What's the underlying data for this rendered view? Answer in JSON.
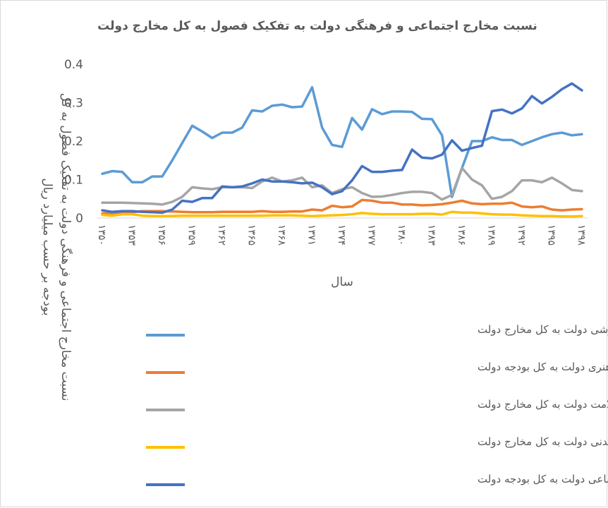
{
  "chart_data": {
    "type": "line",
    "title": "نسبت مخارج اجتماعی و فرهنگی دولت به تفکیک فصول به کل مخارج دولت",
    "x_label": "سال",
    "y_label": "نسبت مخارج اجتماعی و فرهنگی دولت به تفکیک فصول به کل بودجه بر حسب میلیارد ریال",
    "categories": [
      "۱۳۵۰",
      null,
      null,
      "۱۳۵۳",
      null,
      null,
      "۱۳۵۶",
      null,
      null,
      "۱۳۵۹",
      null,
      null,
      "۱۳۶۲",
      null,
      null,
      "۱۳۶۵",
      null,
      null,
      "۱۳۶۸",
      null,
      null,
      "۱۳۷۱",
      null,
      null,
      "۱۳۷۴",
      null,
      null,
      "۱۳۷۷",
      null,
      null,
      "۱۳۸۰",
      null,
      null,
      "۱۳۸۳",
      null,
      null,
      "۱۳۸۶",
      null,
      null,
      "۱۳۸۹",
      null,
      null,
      "۱۳۹۲",
      null,
      null,
      "۱۳۹۵",
      null,
      null,
      "۱۳۹۸"
    ],
    "ylim": [
      0,
      0.4
    ],
    "yticks": [
      0,
      0.1,
      0.2,
      0.3,
      0.4
    ],
    "grid": false,
    "legend": "bottom",
    "series": [
      {
        "name": "نسبت مخارج آموزشی دولت به کل مخارج دولت",
        "color": "#5b9bd5",
        "values": [
          0.115,
          0.122,
          0.12,
          0.093,
          0.093,
          0.108,
          0.108,
          0.15,
          0.195,
          0.24,
          0.225,
          0.208,
          0.222,
          0.222,
          0.235,
          0.28,
          0.277,
          0.292,
          0.295,
          0.288,
          0.29,
          0.34,
          0.235,
          0.19,
          0.185,
          0.26,
          0.23,
          0.283,
          0.27,
          0.277,
          0.277,
          0.276,
          0.258,
          0.257,
          0.215,
          0.055,
          0.13,
          0.2,
          0.2,
          0.21,
          0.203,
          0.203,
          0.19,
          0.2,
          0.21,
          0.218,
          0.222,
          0.215,
          0.218
        ]
      },
      {
        "name": "نسبت مخارج فرهنگی و هنری دولت به کل بودجه دولت",
        "color": "#ed7d31",
        "values": [
          0.012,
          0.012,
          0.015,
          0.015,
          0.018,
          0.018,
          0.018,
          0.017,
          0.016,
          0.015,
          0.015,
          0.015,
          0.016,
          0.016,
          0.016,
          0.016,
          0.018,
          0.016,
          0.016,
          0.017,
          0.017,
          0.022,
          0.02,
          0.032,
          0.028,
          0.03,
          0.047,
          0.045,
          0.04,
          0.04,
          0.035,
          0.035,
          0.033,
          0.034,
          0.036,
          0.04,
          0.045,
          0.038,
          0.036,
          0.037,
          0.037,
          0.04,
          0.03,
          0.028,
          0.03,
          0.022,
          0.02,
          0.022,
          0.023
        ]
      },
      {
        "name": "نسبت مخارج بهداشتی و سلامت دولت به کل مخارج دولت",
        "color": "#a5a5a5",
        "values": [
          0.04,
          0.04,
          0.04,
          0.039,
          0.038,
          0.037,
          0.035,
          0.042,
          0.055,
          0.08,
          0.077,
          0.075,
          0.08,
          0.08,
          0.08,
          0.078,
          0.095,
          0.105,
          0.095,
          0.098,
          0.105,
          0.08,
          0.085,
          0.065,
          0.075,
          0.08,
          0.065,
          0.055,
          0.056,
          0.06,
          0.065,
          0.068,
          0.068,
          0.065,
          0.048,
          0.06,
          0.13,
          0.1,
          0.085,
          0.05,
          0.055,
          0.07,
          0.098,
          0.098,
          0.093,
          0.105,
          0.09,
          0.073,
          0.07
        ]
      },
      {
        "name": "نسبت مخارج تربیت بدنی دولت به کل مخارج دولت",
        "color": "#ffc000",
        "values": [
          0.008,
          0.006,
          0.01,
          0.01,
          0.006,
          0.005,
          0.005,
          0.005,
          0.006,
          0.006,
          0.006,
          0.006,
          0.006,
          0.006,
          0.006,
          0.006,
          0.006,
          0.007,
          0.007,
          0.007,
          0.006,
          0.005,
          0.006,
          0.007,
          0.008,
          0.01,
          0.013,
          0.011,
          0.01,
          0.01,
          0.01,
          0.01,
          0.011,
          0.011,
          0.009,
          0.016,
          0.014,
          0.014,
          0.012,
          0.01,
          0.009,
          0.009,
          0.007,
          0.006,
          0.005,
          0.005,
          0.004,
          0.004,
          0.005
        ]
      },
      {
        "name": "نسبت مخارج رفاه و تامین اجتماعی دولت به کل بودجه دولت",
        "color": "#4472c4",
        "values": [
          0.02,
          0.016,
          0.018,
          0.018,
          0.016,
          0.015,
          0.014,
          0.022,
          0.045,
          0.042,
          0.052,
          0.052,
          0.082,
          0.08,
          0.082,
          0.09,
          0.1,
          0.095,
          0.095,
          0.093,
          0.09,
          0.092,
          0.08,
          0.062,
          0.07,
          0.098,
          0.135,
          0.12,
          0.12,
          0.123,
          0.125,
          0.178,
          0.157,
          0.155,
          0.165,
          0.202,
          0.175,
          0.182,
          0.188,
          0.278,
          0.282,
          0.272,
          0.285,
          0.317,
          0.298,
          0.315,
          0.335,
          0.35,
          0.332
        ]
      }
    ]
  }
}
